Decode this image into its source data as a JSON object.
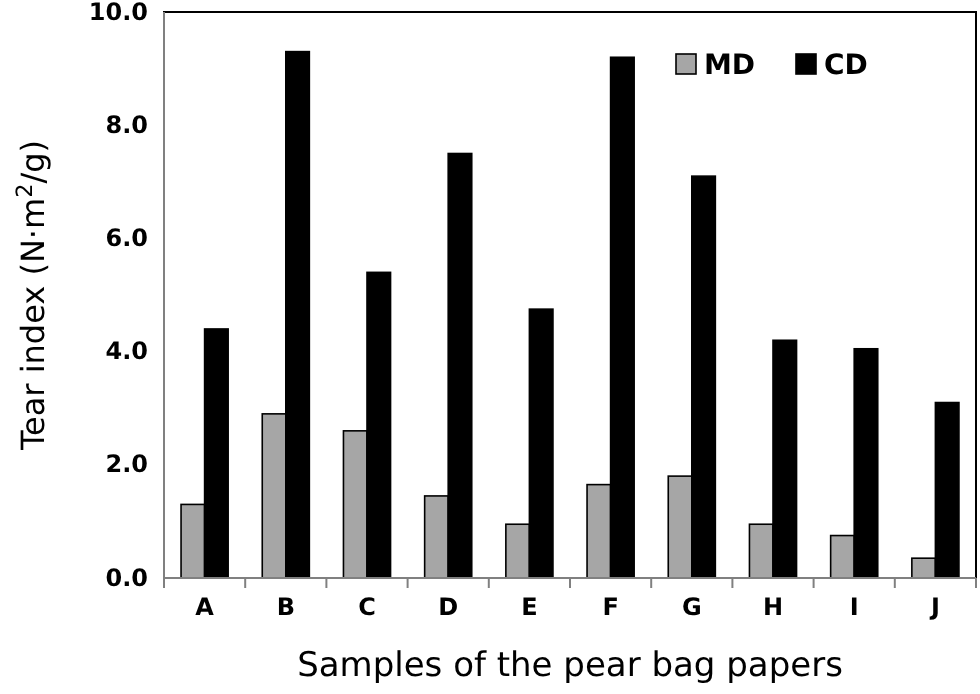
{
  "chart_data": {
    "type": "bar",
    "xlabel": "Samples of the pear bag papers",
    "ylabel": "Tear index (N·m$^{2}$/g)",
    "categories": [
      "A",
      "B",
      "C",
      "D",
      "E",
      "F",
      "G",
      "H",
      "I",
      "J"
    ],
    "series": [
      {
        "name": "MD",
        "color": "#a6a6a6",
        "values": [
          1.3,
          2.9,
          2.6,
          1.45,
          0.95,
          1.65,
          1.8,
          0.95,
          0.75,
          0.35
        ]
      },
      {
        "name": "CD",
        "color": "#000000",
        "values": [
          4.4,
          9.3,
          5.4,
          7.5,
          4.75,
          9.2,
          7.1,
          4.2,
          4.05,
          3.1
        ]
      }
    ],
    "ylim": [
      0,
      10
    ],
    "yticks": [
      {
        "value": 0,
        "label": "0.0"
      },
      {
        "value": 2,
        "label": "2.0"
      },
      {
        "value": 4,
        "label": "4.0"
      },
      {
        "value": 6,
        "label": "6.0"
      },
      {
        "value": 8,
        "label": "8.0"
      },
      {
        "value": 10,
        "label": "10.0"
      }
    ],
    "grid": false,
    "legend": "top right"
  }
}
